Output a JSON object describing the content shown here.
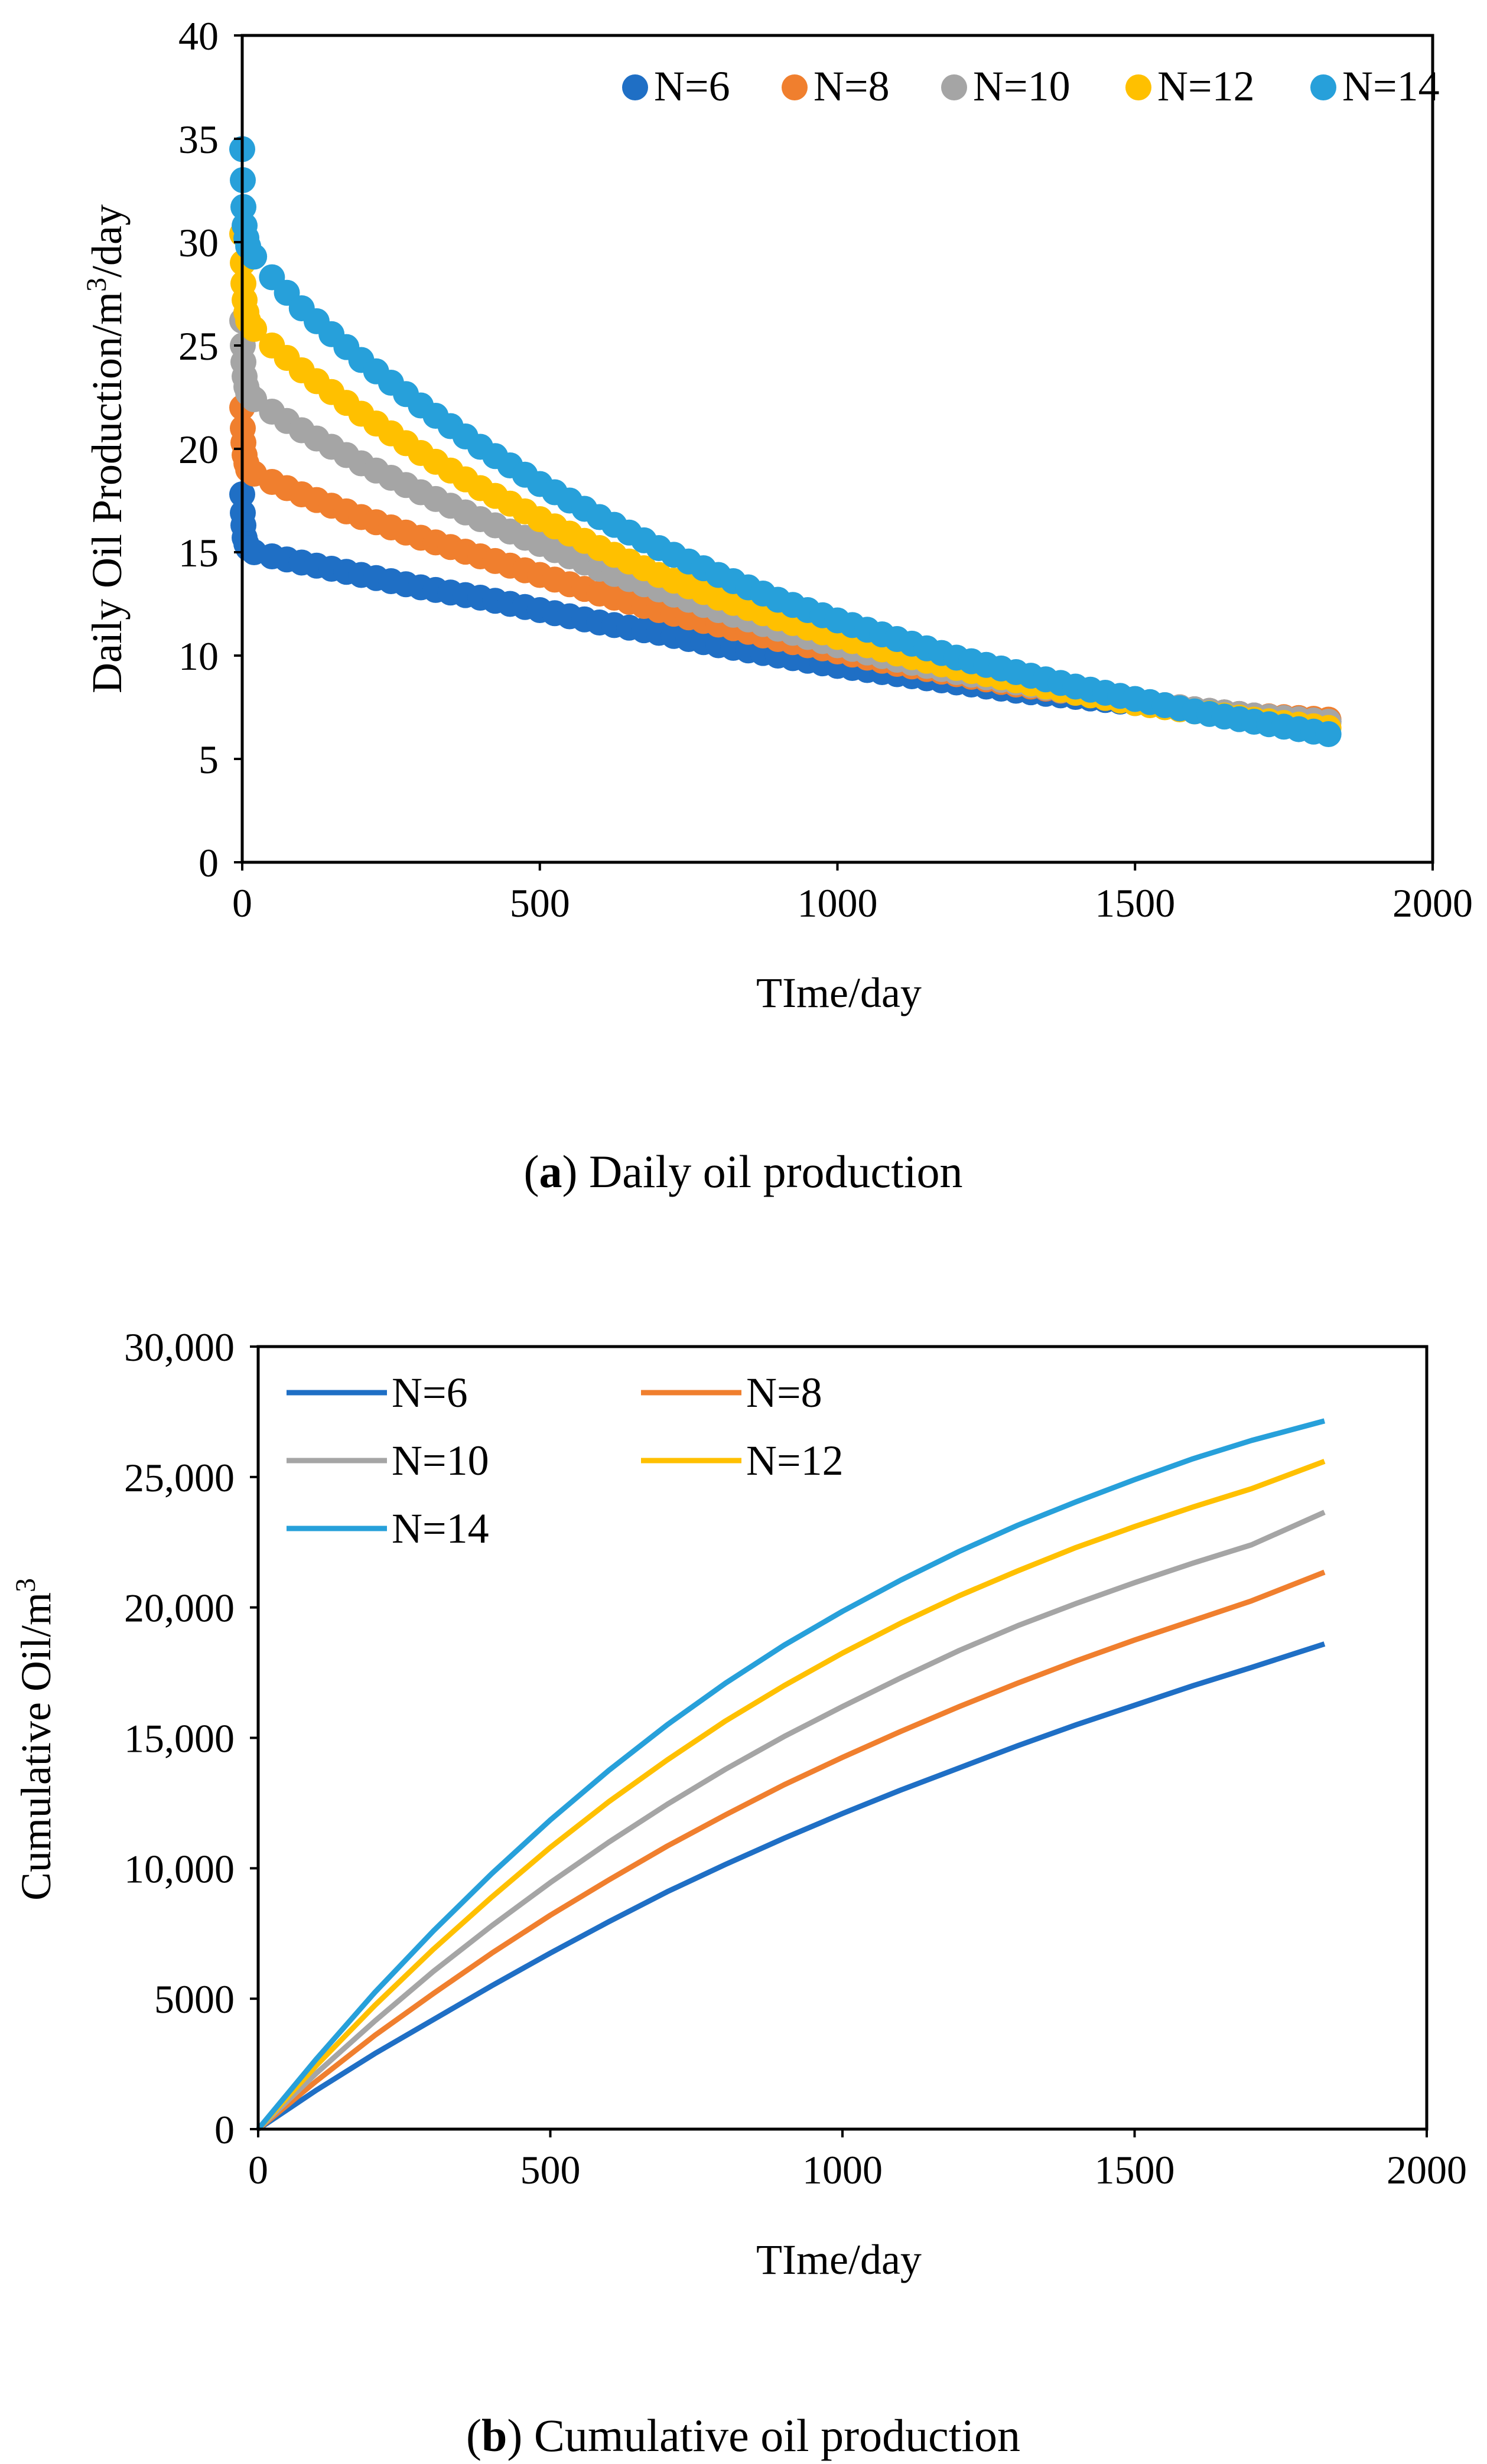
{
  "figure": {
    "caption_a": {
      "open": "(",
      "letter": "a",
      "close": ")",
      "text": " Daily oil production"
    },
    "caption_b": {
      "open": "(",
      "letter": "b",
      "close": ")",
      "text": " Cumulative oil production"
    }
  },
  "chart_data": [
    {
      "id": "a",
      "type": "scatter",
      "title": "",
      "xlabel": "TIme/day",
      "ylabel": "Daily Oil Production/m³/day",
      "ylabel_parts": {
        "pre": "Daily Oil Production/m",
        "sup": "3",
        "post": "/day"
      },
      "xlim": [
        0,
        2000
      ],
      "ylim": [
        0,
        40
      ],
      "xticks": [
        0,
        500,
        1000,
        1500,
        2000
      ],
      "yticks": [
        0,
        5,
        10,
        15,
        20,
        25,
        30,
        35,
        40
      ],
      "xtick_labels": [
        "0",
        "500",
        "1000",
        "1500",
        "2000"
      ],
      "ytick_labels": [
        "0",
        "5",
        "10",
        "15",
        "20",
        "25",
        "30",
        "35",
        "40"
      ],
      "grid": false,
      "legend_position": "top-right",
      "series": [
        {
          "name": "N=6",
          "color": "#1F6FC5",
          "x": [
            0,
            1,
            2,
            4,
            7,
            10,
            20,
            50,
            100,
            200,
            300,
            400,
            500,
            600,
            700,
            800,
            900,
            1000,
            1100,
            1200,
            1300,
            1400,
            1500,
            1600,
            1700,
            1825
          ],
          "y": [
            17.8,
            16.9,
            16.3,
            15.7,
            15.4,
            15.2,
            15.0,
            14.8,
            14.5,
            13.9,
            13.3,
            12.8,
            12.2,
            11.6,
            11.1,
            10.5,
            10.0,
            9.5,
            9.1,
            8.7,
            8.3,
            8.0,
            7.7,
            7.4,
            7.1,
            6.8
          ]
        },
        {
          "name": "N=8",
          "color": "#F07F2E",
          "x": [
            0,
            1,
            2,
            4,
            7,
            10,
            20,
            50,
            100,
            200,
            300,
            400,
            500,
            600,
            700,
            800,
            900,
            1000,
            1100,
            1200,
            1300,
            1400,
            1500,
            1600,
            1700,
            1825
          ],
          "y": [
            22.0,
            21.0,
            20.3,
            19.7,
            19.3,
            19.0,
            18.8,
            18.4,
            17.8,
            16.7,
            15.7,
            14.8,
            13.9,
            13.0,
            12.2,
            11.5,
            10.8,
            10.2,
            9.6,
            9.1,
            8.6,
            8.2,
            7.8,
            7.4,
            7.1,
            6.9
          ]
        },
        {
          "name": "N=10",
          "color": "#A5A5A5",
          "x": [
            0,
            1,
            2,
            4,
            7,
            10,
            20,
            50,
            100,
            200,
            300,
            400,
            500,
            600,
            700,
            800,
            900,
            1000,
            1100,
            1200,
            1300,
            1400,
            1500,
            1600,
            1700,
            1825
          ],
          "y": [
            26.2,
            25.0,
            24.2,
            23.5,
            23.0,
            22.7,
            22.4,
            21.8,
            20.9,
            19.3,
            17.9,
            16.6,
            15.4,
            14.2,
            13.2,
            12.2,
            11.3,
            10.5,
            9.8,
            9.2,
            8.7,
            8.2,
            7.8,
            7.4,
            7.1,
            6.8
          ]
        },
        {
          "name": "N=12",
          "color": "#FFC000",
          "x": [
            0,
            1,
            2,
            4,
            7,
            10,
            20,
            50,
            100,
            200,
            300,
            400,
            500,
            600,
            700,
            800,
            900,
            1000,
            1100,
            1200,
            1300,
            1400,
            1500,
            1600,
            1700,
            1825
          ],
          "y": [
            30.4,
            29.0,
            28.0,
            27.2,
            26.6,
            26.2,
            25.8,
            25.0,
            23.8,
            21.7,
            19.8,
            18.1,
            16.6,
            15.2,
            13.9,
            12.8,
            11.8,
            10.9,
            10.1,
            9.4,
            8.8,
            8.2,
            7.7,
            7.3,
            6.9,
            6.5
          ]
        },
        {
          "name": "N=14",
          "color": "#27A0DA",
          "x": [
            0,
            1,
            2,
            4,
            7,
            10,
            20,
            50,
            100,
            200,
            300,
            400,
            500,
            600,
            700,
            800,
            900,
            1000,
            1100,
            1200,
            1300,
            1400,
            1500,
            1600,
            1700,
            1825
          ],
          "y": [
            34.5,
            33.0,
            31.7,
            30.8,
            30.2,
            29.8,
            29.3,
            28.3,
            26.8,
            24.3,
            22.1,
            20.1,
            18.3,
            16.7,
            15.2,
            13.9,
            12.7,
            11.7,
            10.8,
            9.9,
            9.2,
            8.5,
            7.9,
            7.3,
            6.8,
            6.2
          ]
        }
      ]
    },
    {
      "id": "b",
      "type": "line",
      "title": "",
      "xlabel": "TIme/day",
      "ylabel": "Cumulative Oil/m³",
      "ylabel_parts": {
        "pre": "Cumulative Oil/m",
        "sup": "3",
        "post": ""
      },
      "xlim": [
        0,
        2000
      ],
      "ylim": [
        0,
        30000
      ],
      "xticks": [
        0,
        500,
        1000,
        1500,
        2000
      ],
      "yticks": [
        0,
        5000,
        10000,
        15000,
        20000,
        25000,
        30000
      ],
      "xtick_labels": [
        "0",
        "500",
        "1000",
        "1500",
        "2000"
      ],
      "ytick_labels": [
        "0",
        "5000",
        "10,000",
        "15,000",
        "20,000",
        "25,000",
        "30,000"
      ],
      "grid": false,
      "legend_position": "top-left",
      "series": [
        {
          "name": "N=6",
          "color": "#1F6FC5",
          "x": [
            0,
            100,
            200,
            300,
            400,
            500,
            600,
            700,
            800,
            900,
            1000,
            1100,
            1200,
            1300,
            1400,
            1500,
            1600,
            1700,
            1825
          ],
          "y": [
            0,
            1500,
            2900,
            4200,
            5500,
            6750,
            7950,
            9100,
            10150,
            11150,
            12100,
            13000,
            13850,
            14700,
            15500,
            16250,
            17000,
            17700,
            18600
          ]
        },
        {
          "name": "N=8",
          "color": "#F07F2E",
          "x": [
            0,
            100,
            200,
            300,
            400,
            500,
            600,
            700,
            800,
            900,
            1000,
            1100,
            1200,
            1300,
            1400,
            1500,
            1600,
            1700,
            1825
          ],
          "y": [
            0,
            1850,
            3600,
            5200,
            6750,
            8200,
            9550,
            10850,
            12050,
            13200,
            14250,
            15250,
            16200,
            17100,
            17950,
            18750,
            19500,
            20250,
            21350
          ]
        },
        {
          "name": "N=10",
          "color": "#A5A5A5",
          "x": [
            0,
            100,
            200,
            300,
            400,
            500,
            600,
            700,
            800,
            900,
            1000,
            1100,
            1200,
            1300,
            1400,
            1500,
            1600,
            1700,
            1825
          ],
          "y": [
            0,
            2150,
            4150,
            6050,
            7800,
            9450,
            11000,
            12450,
            13800,
            15050,
            16200,
            17300,
            18350,
            19300,
            20150,
            20950,
            21700,
            22400,
            23650
          ]
        },
        {
          "name": "N=12",
          "color": "#FFC000",
          "x": [
            0,
            100,
            200,
            300,
            400,
            500,
            600,
            700,
            800,
            900,
            1000,
            1100,
            1200,
            1300,
            1400,
            1500,
            1600,
            1700,
            1825
          ],
          "y": [
            0,
            2450,
            4750,
            6900,
            8900,
            10800,
            12550,
            14150,
            15650,
            17000,
            18250,
            19400,
            20450,
            21400,
            22300,
            23100,
            23850,
            24550,
            25600
          ]
        },
        {
          "name": "N=14",
          "color": "#27A0DA",
          "x": [
            0,
            100,
            200,
            300,
            400,
            500,
            600,
            700,
            800,
            900,
            1000,
            1100,
            1200,
            1300,
            1400,
            1500,
            1600,
            1700,
            1825
          ],
          "y": [
            0,
            2700,
            5250,
            7600,
            9800,
            11850,
            13750,
            15500,
            17100,
            18550,
            19850,
            21050,
            22150,
            23150,
            24050,
            24900,
            25700,
            26400,
            27150
          ]
        }
      ]
    }
  ]
}
